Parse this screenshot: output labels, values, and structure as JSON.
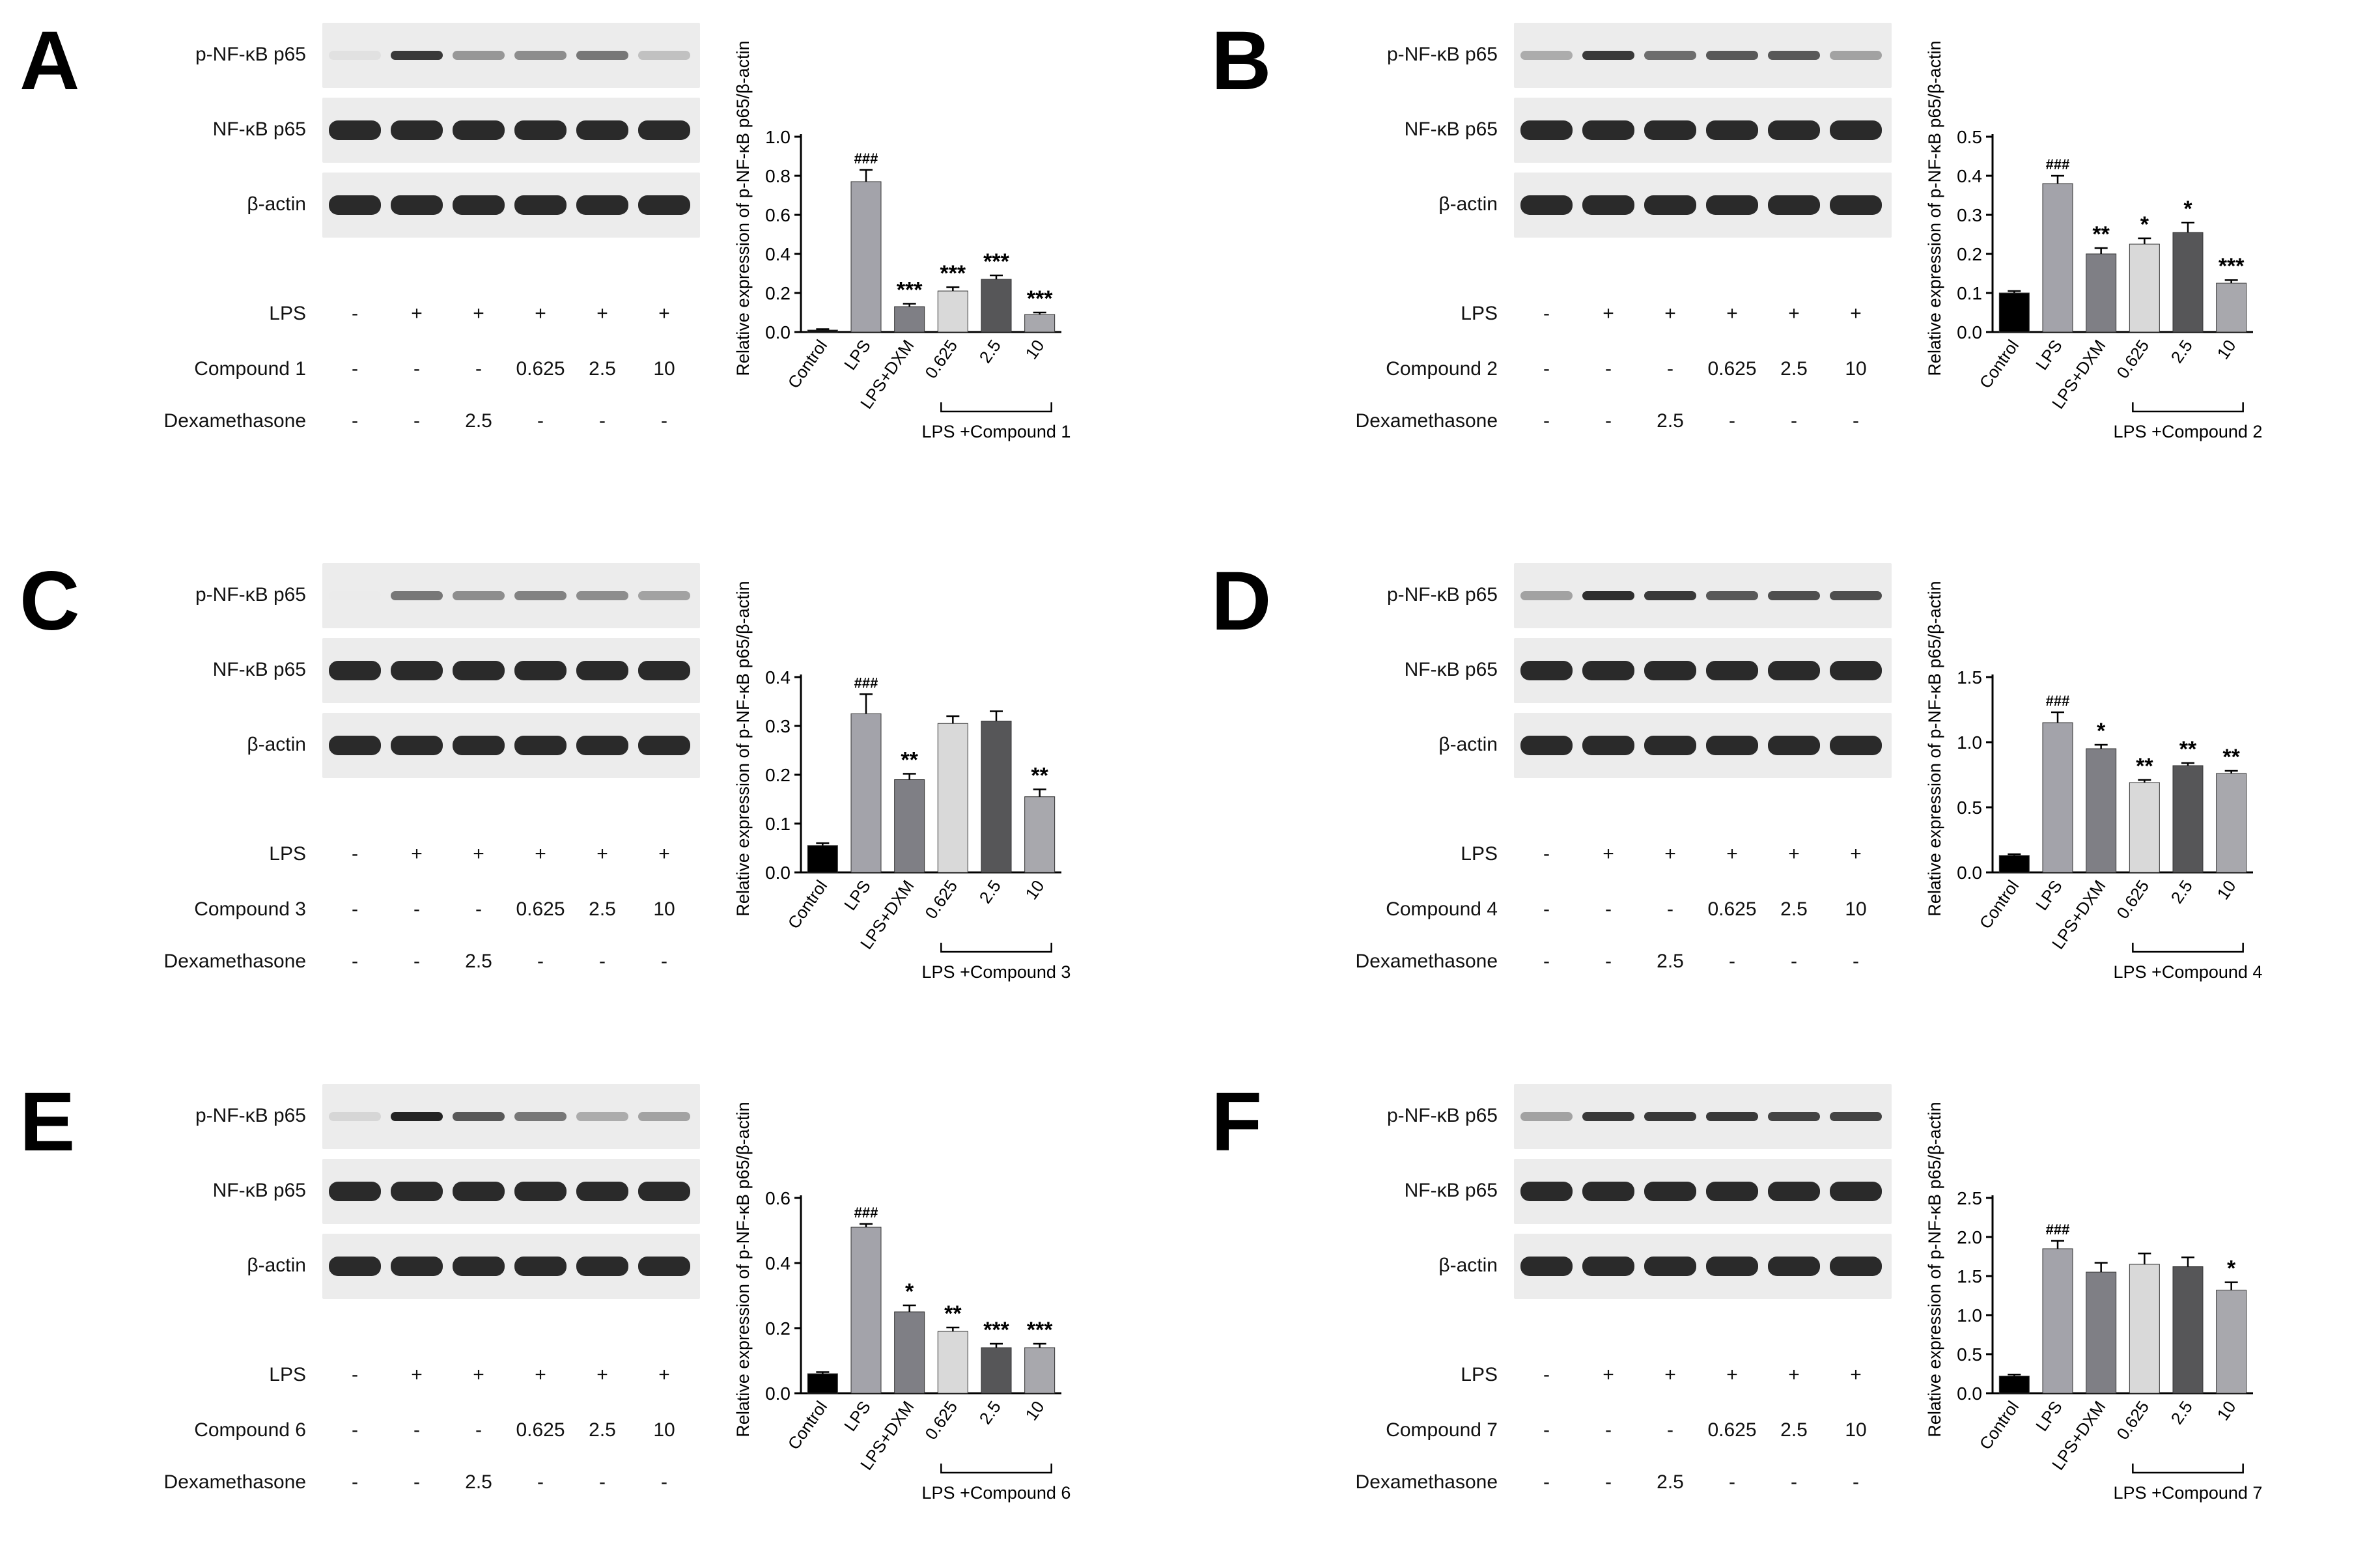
{
  "common": {
    "blot_labels": [
      "p-NF-κB p65",
      "NF-κB p65",
      "β-actin"
    ],
    "lps_label": "LPS",
    "dex_label": "Dexamethasone",
    "lps_row": [
      "-",
      "+",
      "+",
      "+",
      "+",
      "+"
    ],
    "dex_row": [
      "-",
      "-",
      "2.5",
      "-",
      "-",
      "-"
    ]
  },
  "panels": [
    {
      "letter": "A",
      "compound_label": "Compound 1",
      "compound_row": [
        "-",
        "-",
        "-",
        "0.625",
        "2.5",
        "10"
      ],
      "p_band_intensity": [
        0.05,
        0.85,
        0.4,
        0.45,
        0.55,
        0.2
      ],
      "chart_data": {
        "type": "bar",
        "ylabel": "Relative expression of  p-NF-κB p65/β-actin",
        "ylim": [
          0,
          1.0
        ],
        "yticks": [
          "0.0",
          "0.2",
          "0.4",
          "0.6",
          "0.8",
          "1.0"
        ],
        "categories": [
          "Control",
          "LPS",
          "LPS+DXM",
          "0.625",
          "2.5",
          "10"
        ],
        "values": [
          0.01,
          0.77,
          0.13,
          0.21,
          0.27,
          0.09
        ],
        "errors": [
          0.005,
          0.06,
          0.015,
          0.02,
          0.02,
          0.01
        ],
        "annotations": [
          "",
          "###",
          "***",
          "***",
          "***",
          "***"
        ],
        "bracket_label": "LPS +Compound 1"
      }
    },
    {
      "letter": "B",
      "compound_label": "Compound 2",
      "compound_row": [
        "-",
        "-",
        "-",
        "0.625",
        "2.5",
        "10"
      ],
      "p_band_intensity": [
        0.3,
        0.85,
        0.6,
        0.7,
        0.7,
        0.35
      ],
      "chart_data": {
        "type": "bar",
        "ylabel": "Relative expression of  p-NF-κB p65/β-actin",
        "ylim": [
          0,
          0.5
        ],
        "yticks": [
          "0.0",
          "0.1",
          "0.2",
          "0.3",
          "0.4",
          "0.5"
        ],
        "categories": [
          "Control",
          "LPS",
          "LPS+DXM",
          "0.625",
          "2.5",
          "10"
        ],
        "values": [
          0.1,
          0.38,
          0.2,
          0.225,
          0.255,
          0.125
        ],
        "errors": [
          0.005,
          0.02,
          0.015,
          0.015,
          0.025,
          0.008
        ],
        "annotations": [
          "",
          "###",
          "**",
          "*",
          "*",
          "***"
        ],
        "bracket_label": "LPS +Compound 2"
      }
    },
    {
      "letter": "C",
      "compound_label": "Compound 3",
      "compound_row": [
        "-",
        "-",
        "-",
        "0.625",
        "2.5",
        "10"
      ],
      "p_band_intensity": [
        0.0,
        0.55,
        0.45,
        0.5,
        0.45,
        0.35
      ],
      "chart_data": {
        "type": "bar",
        "ylabel": "Relative expression of  p-NF-κB p65/β-actin",
        "ylim": [
          0,
          0.4
        ],
        "yticks": [
          "0.0",
          "0.1",
          "0.2",
          "0.3",
          "0.4"
        ],
        "categories": [
          "Control",
          "LPS",
          "LPS+DXM",
          "0.625",
          "2.5",
          "10"
        ],
        "values": [
          0.055,
          0.325,
          0.19,
          0.305,
          0.31,
          0.155
        ],
        "errors": [
          0.005,
          0.04,
          0.012,
          0.015,
          0.02,
          0.015
        ],
        "annotations": [
          "",
          "###",
          "**",
          "",
          "",
          "**"
        ],
        "bracket_label": "LPS +Compound 3"
      }
    },
    {
      "letter": "D",
      "compound_label": "Compound 4",
      "compound_row": [
        "-",
        "-",
        "-",
        "0.625",
        "2.5",
        "10"
      ],
      "p_band_intensity": [
        0.35,
        0.9,
        0.85,
        0.7,
        0.75,
        0.75
      ],
      "chart_data": {
        "type": "bar",
        "ylabel": "Relative expression of  p-NF-κB p65/β-actin",
        "ylim": [
          0,
          1.5
        ],
        "yticks": [
          "0.0",
          "0.5",
          "1.0",
          "1.5"
        ],
        "categories": [
          "Control",
          "LPS",
          "LPS+DXM",
          "0.625",
          "2.5",
          "10"
        ],
        "values": [
          0.13,
          1.15,
          0.95,
          0.69,
          0.82,
          0.76
        ],
        "errors": [
          0.01,
          0.08,
          0.03,
          0.02,
          0.02,
          0.02
        ],
        "annotations": [
          "",
          "###",
          "*",
          "**",
          "**",
          "**"
        ],
        "bracket_label": "LPS +Compound 4"
      }
    },
    {
      "letter": "E",
      "compound_label": "Compound 6",
      "compound_row": [
        "-",
        "-",
        "-",
        "0.625",
        "2.5",
        "10"
      ],
      "p_band_intensity": [
        0.1,
        0.95,
        0.7,
        0.55,
        0.3,
        0.35
      ],
      "chart_data": {
        "type": "bar",
        "ylabel": "Relative expression of  p-NF-κB p65/β-actin",
        "ylim": [
          0,
          0.6
        ],
        "yticks": [
          "0.0",
          "0.2",
          "0.4",
          "0.6"
        ],
        "categories": [
          "Control",
          "LPS",
          "LPS+DXM",
          "0.625",
          "2.5",
          "10"
        ],
        "values": [
          0.06,
          0.51,
          0.25,
          0.19,
          0.14,
          0.14
        ],
        "errors": [
          0.005,
          0.01,
          0.02,
          0.012,
          0.012,
          0.012
        ],
        "annotations": [
          "",
          "###",
          "*",
          "**",
          "***",
          "***"
        ],
        "bracket_label": "LPS +Compound 6"
      }
    },
    {
      "letter": "F",
      "compound_label": "Compound 7",
      "compound_row": [
        "-",
        "-",
        "-",
        "0.625",
        "2.5",
        "10"
      ],
      "p_band_intensity": [
        0.35,
        0.85,
        0.85,
        0.85,
        0.8,
        0.8
      ],
      "chart_data": {
        "type": "bar",
        "ylabel": "Relative expression of  p-NF-κB p65/β-actin",
        "ylim": [
          0,
          2.5
        ],
        "yticks": [
          "0.0",
          "0.5",
          "1.0",
          "1.5",
          "2.0",
          "2.5"
        ],
        "categories": [
          "Control",
          "LPS",
          "LPS+DXM",
          "0.625",
          "2.5",
          "10"
        ],
        "values": [
          0.22,
          1.85,
          1.55,
          1.65,
          1.62,
          1.32
        ],
        "errors": [
          0.02,
          0.1,
          0.12,
          0.14,
          0.12,
          0.1
        ],
        "annotations": [
          "",
          "###",
          "",
          "",
          "",
          "*"
        ],
        "bracket_label": "LPS +Compound 7"
      }
    }
  ]
}
